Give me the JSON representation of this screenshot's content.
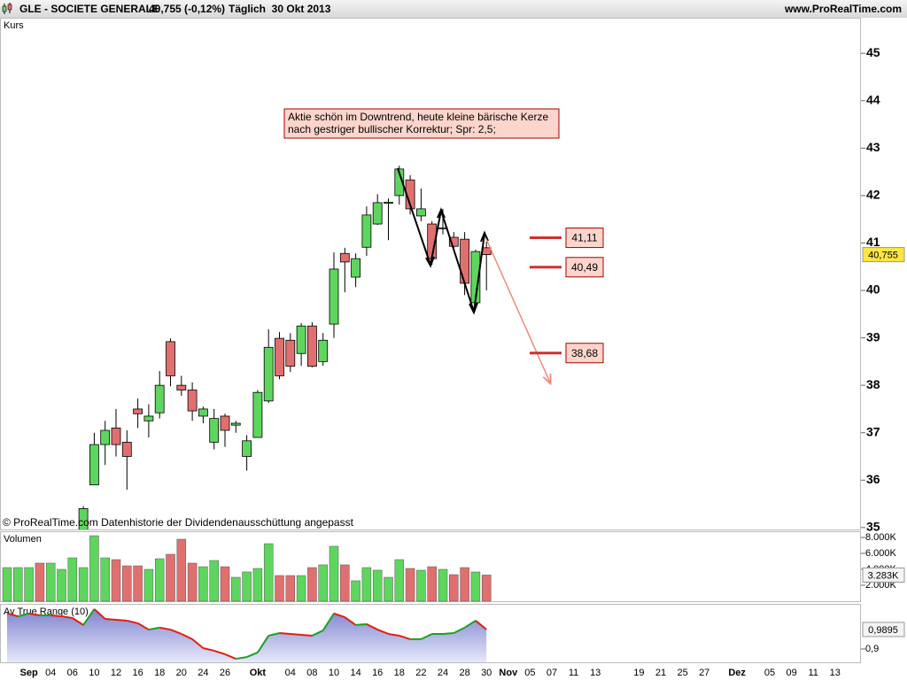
{
  "header": {
    "symbol": "GLE - SOCIETE GENERALE",
    "quote": "40,755 (-0,12%)",
    "period": "Täglich  30 Okt 2013",
    "site": "www.ProRealTime.com",
    "copyright": "© ProRealTime.com Datenhistorie der Dividendenausschüttung angepasst"
  },
  "chart_data": [
    {
      "type": "candlestick",
      "title": "Kurs",
      "categories": [
        null,
        null,
        "Sep",
        null,
        "04",
        null,
        "06",
        null,
        "10",
        null,
        "12",
        null,
        "16",
        null,
        "18",
        null,
        "20",
        null,
        "24",
        null,
        "26",
        null,
        null,
        "Okt",
        null,
        null,
        "04",
        null,
        "08",
        null,
        "10",
        null,
        "14",
        null,
        "16",
        null,
        "18",
        null,
        "22",
        null,
        "24",
        null,
        "28",
        null,
        "30",
        null,
        "Nov",
        null,
        "05",
        null,
        "07",
        null,
        "11",
        null,
        "13",
        null,
        null,
        null,
        "19",
        null,
        "21",
        null,
        "25",
        null,
        "27",
        null,
        null,
        "Dez",
        null,
        null,
        "05",
        null,
        "09",
        null,
        "11",
        null,
        "13"
      ],
      "open": [
        null,
        null,
        null,
        null,
        null,
        null,
        null,
        34.8,
        35.9,
        36.75,
        37.1,
        36.8,
        37.5,
        37.25,
        37.42,
        38.92,
        38.0,
        37.9,
        37.35,
        36.8,
        37.35,
        37.16,
        36.5,
        36.9,
        37.67,
        38.99,
        38.95,
        38.67,
        39.25,
        38.5,
        39.29,
        40.78,
        40.28,
        40.91,
        41.4,
        41.84,
        42.0,
        42.33,
        41.57,
        41.4,
        41.3,
        41.12,
        41.08,
        39.74,
        40.9,
        null,
        null,
        null,
        null,
        null,
        null,
        null,
        null,
        null,
        null,
        null,
        null,
        null,
        null,
        null,
        null,
        null,
        null,
        null,
        null,
        null,
        null,
        null,
        null,
        null,
        null,
        null,
        null,
        null,
        null,
        null,
        null
      ],
      "high": [
        null,
        null,
        null,
        null,
        null,
        null,
        null,
        35.45,
        37.0,
        37.25,
        37.5,
        37.05,
        37.72,
        37.6,
        38.3,
        38.99,
        38.2,
        38.06,
        37.55,
        37.5,
        37.4,
        37.25,
        36.95,
        37.9,
        39.18,
        39.12,
        39.1,
        39.31,
        39.33,
        39.1,
        40.8,
        40.9,
        40.78,
        41.77,
        42.03,
        41.94,
        42.63,
        42.43,
        42.15,
        41.46,
        41.72,
        41.23,
        41.23,
        40.86,
        41.03,
        null,
        null,
        null,
        null,
        null,
        null,
        null,
        null,
        null,
        null,
        null,
        null,
        null,
        null,
        null,
        null,
        null,
        null,
        null,
        null,
        null,
        null,
        null,
        null,
        null,
        null,
        null,
        null,
        null,
        null,
        null,
        null
      ],
      "low": [
        null,
        null,
        null,
        null,
        null,
        null,
        null,
        34.7,
        35.9,
        36.32,
        36.5,
        35.8,
        37.1,
        36.9,
        37.3,
        37.98,
        37.78,
        37.25,
        37.2,
        36.65,
        36.7,
        37.0,
        36.2,
        36.9,
        37.63,
        38.13,
        38.28,
        38.41,
        38.38,
        38.41,
        39.0,
        39.96,
        40.07,
        40.73,
        41.38,
        41.06,
        41.81,
        41.6,
        41.46,
        40.54,
        41.18,
        40.86,
        39.9,
        39.69,
        40.0,
        null,
        null,
        null,
        null,
        null,
        null,
        null,
        null,
        null,
        null,
        null,
        null,
        null,
        null,
        null,
        null,
        null,
        null,
        null,
        null,
        null,
        null,
        null,
        null,
        null,
        null,
        null,
        null,
        null,
        null,
        null,
        null
      ],
      "close": [
        null,
        null,
        null,
        null,
        null,
        null,
        null,
        35.4,
        36.75,
        37.05,
        36.75,
        36.5,
        37.4,
        37.35,
        38.0,
        38.2,
        37.9,
        37.46,
        37.5,
        37.3,
        37.05,
        37.2,
        36.83,
        37.85,
        38.8,
        38.2,
        38.4,
        39.25,
        38.4,
        38.95,
        40.45,
        40.6,
        40.67,
        41.59,
        41.85,
        41.86,
        42.56,
        41.72,
        41.72,
        40.67,
        41.32,
        40.93,
        40.15,
        40.82,
        40.755,
        null,
        null,
        null,
        null,
        null,
        null,
        null,
        null,
        null,
        null,
        null,
        null,
        null,
        null,
        null,
        null,
        null,
        null,
        null,
        null,
        null,
        null,
        null,
        null,
        null,
        null,
        null,
        null,
        null,
        null,
        null,
        null
      ],
      "up_color": "#5ed65e",
      "down_color": "#e07070",
      "ylim": [
        34.96,
        45.75
      ],
      "yticks": [
        35,
        36,
        37,
        38,
        39,
        40,
        41,
        42,
        43,
        44,
        45
      ],
      "last_value": {
        "value": 40.755,
        "label": "40,755"
      },
      "annotation": [
        "Aktie schön im Downtrend, heute kleine bärische Kerze",
        "nach gestriger bullischer Korrektur; Spr: 2,5;"
      ],
      "levels": [
        {
          "value": 41.11,
          "label": "41,11"
        },
        {
          "value": 40.49,
          "label": "40,49"
        },
        {
          "value": 38.68,
          "label": "38,68"
        }
      ]
    },
    {
      "type": "bar",
      "title": "Volumen",
      "values": [
        4220,
        4220,
        4220,
        4780,
        4780,
        4000,
        5440,
        4220,
        8220,
        5440,
        5220,
        4440,
        4440,
        4000,
        5330,
        5890,
        7780,
        4780,
        4330,
        5110,
        4330,
        3000,
        3670,
        4110,
        7220,
        3220,
        3220,
        3220,
        4220,
        4560,
        6890,
        4560,
        2560,
        4220,
        3890,
        3000,
        5220,
        4110,
        3890,
        4330,
        4000,
        3330,
        4220,
        3670,
        3283,
        null,
        null,
        null,
        null,
        null,
        null,
        null,
        null,
        null,
        null,
        null,
        null,
        null,
        null,
        null,
        null,
        null,
        null,
        null,
        null,
        null,
        null,
        null,
        null,
        null,
        null,
        null,
        null,
        null,
        null,
        null,
        null
      ],
      "colors": [
        "#5ed65e",
        "#5ed65e",
        "#5ed65e",
        "#e07070",
        "#5ed65e",
        "#5ed65e",
        "#5ed65e",
        "#5ed65e",
        "#5ed65e",
        "#5ed65e",
        "#e07070",
        "#e07070",
        "#e07070",
        "#5ed65e",
        "#5ed65e",
        "#e07070",
        "#e07070",
        "#e07070",
        "#5ed65e",
        "#5ed65e",
        "#e07070",
        "#5ed65e",
        "#5ed65e",
        "#5ed65e",
        "#5ed65e",
        "#e07070",
        "#e07070",
        "#5ed65e",
        "#e07070",
        "#5ed65e",
        "#5ed65e",
        "#e07070",
        "#5ed65e",
        "#5ed65e",
        "#5ed65e",
        "#5ed65e",
        "#5ed65e",
        "#e07070",
        "#5ed65e",
        "#e07070",
        "#5ed65e",
        "#e07070",
        "#e07070",
        "#5ed65e",
        "#e07070",
        null,
        null,
        null,
        null,
        null,
        null,
        null,
        null,
        null,
        null,
        null,
        null,
        null,
        null,
        null,
        null,
        null,
        null,
        null,
        null,
        null,
        null,
        null,
        null,
        null,
        null,
        null,
        null,
        null,
        null,
        null,
        null
      ],
      "ylim": [
        0,
        8778
      ],
      "yticks": [
        {
          "value": 8000,
          "label": "8.000K"
        },
        {
          "value": 6000,
          "label": "6.000K"
        },
        {
          "value": 4000,
          "label": "4.000K"
        },
        {
          "value": 2000,
          "label": "2.000K"
        }
      ],
      "last_value": {
        "value": 3283,
        "label": "3.283K"
      }
    },
    {
      "type": "area",
      "title": "Av True Range (10)",
      "values": [
        1.063,
        1.05,
        1.063,
        1.054,
        1.054,
        1.05,
        1.042,
        1.01,
        1.083,
        1.038,
        1.034,
        1.03,
        1.018,
        0.989,
        0.998,
        0.989,
        0.969,
        0.945,
        0.904,
        0.892,
        0.876,
        0.855,
        0.863,
        0.884,
        0.961,
        0.973,
        0.969,
        0.965,
        0.961,
        0.985,
        1.063,
        1.046,
        1.01,
        1.014,
        0.989,
        0.969,
        0.961,
        0.945,
        0.945,
        0.969,
        0.969,
        0.973,
        0.998,
        1.03,
        0.9895,
        null,
        null,
        null,
        null,
        null,
        null,
        null,
        null,
        null,
        null,
        null,
        null,
        null,
        null,
        null,
        null,
        null,
        null,
        null,
        null,
        null,
        null,
        null,
        null,
        null,
        null,
        null,
        null,
        null,
        null,
        null,
        null
      ],
      "up_color": "#1fa01f",
      "down_color": "#e02010",
      "fill": "#8a8fd6",
      "ylim": [
        0.839,
        1.107
      ],
      "yticks": [
        {
          "value": 0.9,
          "label": "0,9"
        }
      ],
      "last_value": {
        "value": 0.9895,
        "label": "0,9895"
      }
    }
  ]
}
